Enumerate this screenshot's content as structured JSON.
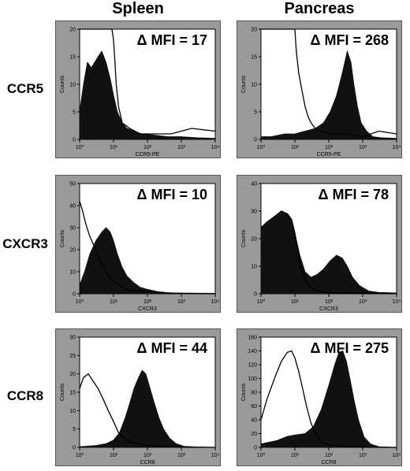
{
  "columns": [
    "Spleen",
    "Pancreas"
  ],
  "rows": [
    "CCR5",
    "CXCR3",
    "CCR8"
  ],
  "colors": {
    "panel_bg": "#9a9a9a",
    "plot_bg": "#ffffff",
    "fill": "#111111",
    "outline": "#000000"
  },
  "chart_data": [
    {
      "type": "area",
      "row": "CCR5",
      "column": "Spleen",
      "annotation": "Δ MFI = 17",
      "xlabel": "CCR5-PE",
      "ylabel": "Counts",
      "x_scale": "log",
      "xlim": [
        1,
        10000
      ],
      "ylim": [
        0,
        20
      ],
      "xticks": [
        "10⁰",
        "10¹",
        "10²",
        "10³",
        "10⁴"
      ],
      "yticks": [
        "0",
        "5",
        "10",
        "15",
        "20"
      ],
      "series": [
        {
          "role": "filled",
          "x": [
            1,
            1.3,
            1.7,
            2.2,
            2.8,
            3.5,
            4.5,
            6,
            8,
            10,
            13,
            18,
            25,
            40,
            70,
            150,
            400,
            1000,
            3000,
            10000
          ],
          "y": [
            5,
            10,
            14,
            13,
            14,
            15,
            16,
            14,
            11,
            8,
            5,
            3,
            2,
            1.5,
            1,
            0.8,
            0.5,
            0.5,
            0.3,
            0.2
          ]
        },
        {
          "role": "outline",
          "x": [
            1,
            1.5,
            2,
            3,
            5,
            8,
            9,
            10,
            11,
            12,
            14,
            18,
            30,
            60,
            150,
            500,
            2000,
            10000
          ],
          "y": [
            20,
            20,
            20,
            20,
            20,
            20,
            20,
            18,
            14,
            10,
            6,
            3,
            2,
            1,
            1,
            1,
            2,
            1.5
          ]
        }
      ]
    },
    {
      "type": "area",
      "row": "CCR5",
      "column": "Pancreas",
      "annotation": "Δ MFI = 268",
      "xlabel": "CCR5-PE",
      "ylabel": "Counts",
      "x_scale": "log",
      "xlim": [
        1,
        10000
      ],
      "ylim": [
        0,
        20
      ],
      "xticks": [
        "10⁰",
        "10¹",
        "10²",
        "10³",
        "10⁴"
      ],
      "yticks": [
        "0",
        "5",
        "10",
        "15",
        "20"
      ],
      "series": [
        {
          "role": "filled",
          "x": [
            1,
            2,
            5,
            10,
            20,
            40,
            70,
            110,
            170,
            250,
            350,
            450,
            550,
            700,
            900,
            1300,
            2000,
            3500,
            10000
          ],
          "y": [
            0.5,
            0.5,
            1,
            1,
            1.5,
            2,
            3,
            5,
            8,
            12,
            16,
            14,
            10,
            6,
            3,
            1.5,
            0.5,
            0.3,
            0.2
          ]
        },
        {
          "role": "outline",
          "x": [
            1,
            2,
            4,
            7,
            9,
            10,
            11,
            13,
            16,
            20,
            25,
            30,
            40,
            60,
            100,
            300,
            1000,
            3000,
            10000
          ],
          "y": [
            20,
            20,
            20,
            20,
            20,
            20,
            16,
            12,
            9,
            6,
            4,
            3,
            2,
            1.5,
            1,
            1,
            0.5,
            1.5,
            1
          ]
        }
      ]
    },
    {
      "type": "area",
      "row": "CXCR3",
      "column": "Spleen",
      "annotation": "Δ MFI = 10",
      "xlabel": "CXCR3",
      "ylabel": "Counts",
      "x_scale": "log",
      "xlim": [
        1,
        10000
      ],
      "ylim": [
        0,
        50
      ],
      "xticks": [
        "10⁰",
        "10¹",
        "10²",
        "10³",
        "10⁴"
      ],
      "yticks": [
        "0",
        "10",
        "20",
        "30",
        "40",
        "50"
      ],
      "series": [
        {
          "role": "filled",
          "x": [
            1,
            1.4,
            2,
            3,
            4.5,
            6,
            8,
            10,
            13,
            18,
            25,
            40,
            60,
            100,
            200,
            400,
            1000,
            3000,
            10000
          ],
          "y": [
            4,
            10,
            18,
            24,
            28,
            30,
            28,
            24,
            18,
            12,
            8,
            5,
            3,
            2,
            1,
            0.5,
            0.3,
            0.2,
            0.1
          ]
        },
        {
          "role": "outline",
          "x": [
            1,
            1.2,
            1.5,
            2,
            3,
            4,
            6,
            9,
            14,
            22,
            40,
            80,
            200,
            1000,
            10000
          ],
          "y": [
            42,
            38,
            32,
            26,
            20,
            15,
            10,
            6,
            4,
            2,
            1.5,
            1,
            0.5,
            0.2,
            0.1
          ]
        }
      ]
    },
    {
      "type": "area",
      "row": "CXCR3",
      "column": "Pancreas",
      "annotation": "Δ MFI = 78",
      "xlabel": "CXCR3",
      "ylabel": "Counts",
      "x_scale": "log",
      "xlim": [
        1,
        10000
      ],
      "ylim": [
        0,
        40
      ],
      "xticks": [
        "10⁰",
        "10¹",
        "10²",
        "10³",
        "10⁴"
      ],
      "yticks": [
        "0",
        "10",
        "20",
        "30",
        "40"
      ],
      "series": [
        {
          "role": "filled",
          "x": [
            1,
            1.5,
            2.5,
            4,
            6,
            8,
            10,
            14,
            20,
            30,
            45,
            70,
            110,
            170,
            250,
            350,
            500,
            800,
            1500,
            3000,
            10000
          ],
          "y": [
            24,
            26,
            28,
            30,
            29,
            27,
            22,
            14,
            8,
            6,
            7,
            9,
            12,
            14,
            13,
            10,
            6,
            3,
            1,
            0.5,
            0.3
          ]
        },
        {
          "role": "outline",
          "x": [
            1,
            1.5,
            2.5,
            4,
            6,
            8,
            10,
            12,
            15,
            20,
            30,
            50,
            100,
            300,
            1000,
            10000
          ],
          "y": [
            24,
            26,
            28,
            30,
            29,
            27,
            22,
            16,
            10,
            5,
            2,
            1,
            0.5,
            0.3,
            0.2,
            0.1
          ]
        }
      ]
    },
    {
      "type": "area",
      "row": "CCR8",
      "column": "Spleen",
      "annotation": "Δ MFI = 44",
      "xlabel": "CCR8",
      "ylabel": "Counts",
      "x_scale": "log",
      "xlim": [
        1,
        10000
      ],
      "ylim": [
        0,
        30
      ],
      "xticks": [
        "10⁰",
        "10¹",
        "10²",
        "10³",
        "10⁴"
      ],
      "yticks": [
        "0",
        "5",
        "10",
        "15",
        "20",
        "25",
        "30"
      ],
      "series": [
        {
          "role": "filled",
          "x": [
            1,
            3,
            6,
            10,
            15,
            22,
            30,
            40,
            55,
            70,
            90,
            120,
            160,
            220,
            300,
            450,
            700,
            1200,
            3000,
            10000
          ],
          "y": [
            0.2,
            0.5,
            1,
            2,
            4,
            8,
            12,
            16,
            19,
            21,
            20,
            16,
            12,
            8,
            5,
            2.5,
            1,
            0.3,
            0.1,
            0
          ]
        },
        {
          "role": "outline",
          "x": [
            1,
            1.3,
            1.8,
            2.5,
            3.5,
            5,
            7,
            10,
            14,
            20,
            30,
            50,
            100,
            300,
            1000,
            10000
          ],
          "y": [
            16,
            19,
            20,
            18,
            16,
            13,
            10,
            7,
            4,
            2.5,
            1.5,
            1,
            0.5,
            0.3,
            0.1,
            0
          ]
        }
      ]
    },
    {
      "type": "area",
      "row": "CCR8",
      "column": "Pancreas",
      "annotation": "Δ MFI = 275",
      "xlabel": "CCR8",
      "ylabel": "Counts",
      "x_scale": "log",
      "xlim": [
        1,
        10000
      ],
      "ylim": [
        0,
        160
      ],
      "xticks": [
        "10⁰",
        "10¹",
        "10²",
        "10³",
        "10⁴"
      ],
      "yticks": [
        "0",
        "20",
        "40",
        "60",
        "80",
        "100",
        "120",
        "140",
        "160"
      ],
      "series": [
        {
          "role": "filled",
          "x": [
            1,
            3,
            6,
            10,
            20,
            35,
            60,
            100,
            150,
            200,
            260,
            330,
            420,
            550,
            750,
            1100,
            1700,
            3000,
            10000
          ],
          "y": [
            5,
            10,
            16,
            18,
            20,
            30,
            55,
            90,
            120,
            138,
            140,
            125,
            100,
            70,
            40,
            15,
            5,
            1,
            0
          ]
        },
        {
          "role": "outline",
          "x": [
            1,
            1.5,
            2.5,
            4,
            6,
            8,
            10,
            13,
            17,
            22,
            30,
            45,
            70,
            120,
            300,
            1000,
            10000
          ],
          "y": [
            40,
            70,
            100,
            125,
            138,
            140,
            130,
            110,
            85,
            60,
            35,
            15,
            6,
            3,
            1,
            0.5,
            0
          ]
        }
      ]
    }
  ]
}
